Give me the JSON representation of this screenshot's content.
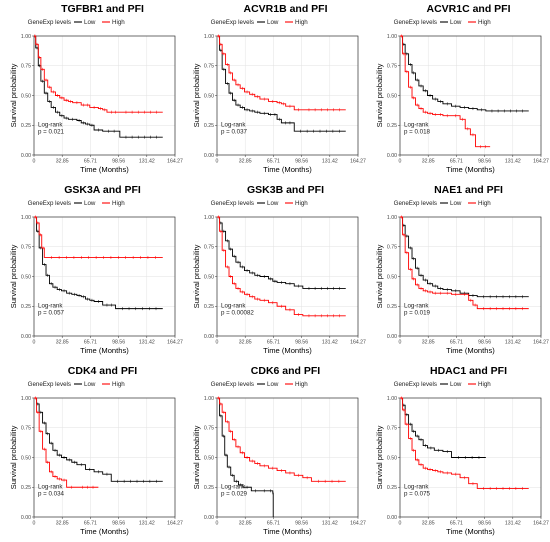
{
  "chart_data": [
    {
      "type": "line",
      "title": "TGFBR1 and PFI",
      "legend_title": "GeneExp levels",
      "xlabel": "Time (Months)",
      "ylabel": "Survival probability",
      "x_ticks": [
        "0",
        "32.85",
        "65.71",
        "98.56",
        "131.42",
        "164.27"
      ],
      "y_ticks": [
        "0.00",
        "0.25",
        "0.50",
        "0.75",
        "1.00"
      ],
      "xlim": [
        0,
        164.27
      ],
      "ylim": [
        0,
        1
      ],
      "legend_position": "top",
      "grid": true,
      "test_label": "Log-rank",
      "p_label": "p = 0.021",
      "series": [
        {
          "name": "Low",
          "color": "#000000",
          "x": [
            0,
            2,
            5,
            8,
            12,
            16,
            20,
            25,
            30,
            35,
            40,
            50,
            55,
            60,
            65,
            70,
            80,
            100,
            150
          ],
          "y": [
            1,
            0.9,
            0.75,
            0.62,
            0.52,
            0.45,
            0.4,
            0.36,
            0.33,
            0.31,
            0.3,
            0.29,
            0.27,
            0.26,
            0.25,
            0.21,
            0.2,
            0.15,
            0.15
          ]
        },
        {
          "name": "High",
          "color": "#ff0000",
          "x": [
            0,
            2,
            5,
            8,
            12,
            16,
            20,
            25,
            30,
            35,
            40,
            45,
            55,
            60,
            65,
            75,
            80,
            85,
            100,
            150
          ],
          "y": [
            1,
            0.93,
            0.82,
            0.72,
            0.63,
            0.57,
            0.53,
            0.5,
            0.48,
            0.46,
            0.45,
            0.44,
            0.42,
            0.42,
            0.4,
            0.39,
            0.38,
            0.36,
            0.36,
            0.36
          ]
        }
      ]
    },
    {
      "type": "line",
      "title": "ACVR1B and PFI",
      "legend_title": "GeneExp levels",
      "xlabel": "Time (Months)",
      "ylabel": "Survival probability",
      "x_ticks": [
        "0",
        "32.85",
        "65.71",
        "98.56",
        "131.42",
        "164.27"
      ],
      "y_ticks": [
        "0.00",
        "0.25",
        "0.50",
        "0.75",
        "1.00"
      ],
      "xlim": [
        0,
        164.27
      ],
      "ylim": [
        0,
        1
      ],
      "legend_position": "top",
      "grid": true,
      "test_label": "Log-rank",
      "p_label": "p = 0.037",
      "series": [
        {
          "name": "Low",
          "color": "#000000",
          "x": [
            0,
            3,
            6,
            10,
            14,
            18,
            22,
            27,
            32,
            38,
            44,
            50,
            60,
            65,
            70,
            75,
            90,
            150
          ],
          "y": [
            1,
            0.88,
            0.72,
            0.6,
            0.52,
            0.46,
            0.42,
            0.4,
            0.38,
            0.37,
            0.36,
            0.35,
            0.34,
            0.34,
            0.3,
            0.27,
            0.2,
            0.2
          ]
        },
        {
          "name": "High",
          "color": "#ff0000",
          "x": [
            0,
            3,
            6,
            10,
            14,
            18,
            22,
            27,
            32,
            38,
            44,
            50,
            60,
            70,
            75,
            80,
            90,
            100,
            150
          ],
          "y": [
            1,
            0.93,
            0.85,
            0.76,
            0.69,
            0.63,
            0.59,
            0.56,
            0.53,
            0.51,
            0.49,
            0.47,
            0.45,
            0.44,
            0.43,
            0.41,
            0.38,
            0.38,
            0.38
          ]
        }
      ]
    },
    {
      "type": "line",
      "title": "ACVR1C and PFI",
      "legend_title": "GeneExp levels",
      "xlabel": "Time (Months)",
      "ylabel": "Survival probability",
      "x_ticks": [
        "0",
        "32.85",
        "65.71",
        "98.56",
        "131.42",
        "164.27"
      ],
      "y_ticks": [
        "0.00",
        "0.25",
        "0.50",
        "0.75",
        "1.00"
      ],
      "xlim": [
        0,
        164.27
      ],
      "ylim": [
        0,
        1
      ],
      "legend_position": "top",
      "grid": true,
      "test_label": "Log-rank",
      "p_label": "p = 0.018",
      "series": [
        {
          "name": "Low",
          "color": "#000000",
          "x": [
            0,
            3,
            6,
            10,
            14,
            18,
            22,
            27,
            32,
            38,
            44,
            50,
            60,
            70,
            80,
            90,
            100,
            150
          ],
          "y": [
            1,
            0.93,
            0.85,
            0.76,
            0.69,
            0.63,
            0.58,
            0.54,
            0.5,
            0.47,
            0.45,
            0.43,
            0.41,
            0.4,
            0.39,
            0.38,
            0.37,
            0.37
          ]
        },
        {
          "name": "High",
          "color": "#ff0000",
          "x": [
            0,
            3,
            6,
            10,
            14,
            18,
            22,
            27,
            32,
            38,
            44,
            50,
            60,
            70,
            76,
            82,
            88,
            105
          ],
          "y": [
            1,
            0.85,
            0.7,
            0.57,
            0.48,
            0.42,
            0.39,
            0.36,
            0.35,
            0.34,
            0.34,
            0.33,
            0.33,
            0.3,
            0.22,
            0.17,
            0.07,
            0.07
          ]
        }
      ]
    },
    {
      "type": "line",
      "title": "GSK3A and PFI",
      "legend_title": "GeneExp levels",
      "xlabel": "Time (Months)",
      "ylabel": "Survival probability",
      "x_ticks": [
        "0",
        "32.85",
        "65.71",
        "98.56",
        "131.42",
        "164.27"
      ],
      "y_ticks": [
        "0.00",
        "0.25",
        "0.50",
        "0.75",
        "1.00"
      ],
      "xlim": [
        0,
        164.27
      ],
      "ylim": [
        0,
        1
      ],
      "legend_position": "top",
      "grid": true,
      "test_label": "Log-rank",
      "p_label": "p = 0.057",
      "series": [
        {
          "name": "Low",
          "color": "#000000",
          "x": [
            0,
            3,
            6,
            10,
            14,
            18,
            22,
            27,
            32,
            38,
            44,
            50,
            55,
            60,
            65,
            70,
            80,
            95,
            150
          ],
          "y": [
            1,
            0.88,
            0.74,
            0.6,
            0.51,
            0.44,
            0.41,
            0.39,
            0.38,
            0.36,
            0.35,
            0.34,
            0.33,
            0.31,
            0.3,
            0.29,
            0.26,
            0.23,
            0.23
          ]
        },
        {
          "name": "High",
          "color": "#ff0000",
          "x": [
            0,
            3,
            6,
            9,
            12,
            150
          ],
          "y": [
            1,
            0.95,
            0.85,
            0.74,
            0.66,
            0.66
          ]
        }
      ]
    },
    {
      "type": "line",
      "title": "GSK3B and PFI",
      "legend_title": "GeneExp levels",
      "xlabel": "Time (Months)",
      "ylabel": "Survival probability",
      "x_ticks": [
        "0",
        "32.85",
        "65.71",
        "98.56",
        "131.42",
        "164.27"
      ],
      "y_ticks": [
        "0.00",
        "0.25",
        "0.50",
        "0.75",
        "1.00"
      ],
      "xlim": [
        0,
        164.27
      ],
      "ylim": [
        0,
        1
      ],
      "legend_position": "top",
      "grid": true,
      "test_label": "Log-rank",
      "p_label": "p = 0.00082",
      "series": [
        {
          "name": "Low",
          "color": "#000000",
          "x": [
            0,
            3,
            6,
            10,
            14,
            18,
            22,
            27,
            32,
            38,
            44,
            50,
            60,
            65,
            70,
            80,
            90,
            100,
            150
          ],
          "y": [
            1,
            0.95,
            0.88,
            0.8,
            0.73,
            0.67,
            0.62,
            0.58,
            0.55,
            0.53,
            0.51,
            0.5,
            0.48,
            0.46,
            0.45,
            0.44,
            0.42,
            0.4,
            0.4
          ]
        },
        {
          "name": "High",
          "color": "#ff0000",
          "x": [
            0,
            3,
            6,
            10,
            14,
            18,
            22,
            27,
            32,
            38,
            44,
            50,
            60,
            70,
            80,
            90,
            100,
            150
          ],
          "y": [
            1,
            0.88,
            0.72,
            0.58,
            0.5,
            0.44,
            0.4,
            0.37,
            0.35,
            0.33,
            0.31,
            0.3,
            0.28,
            0.25,
            0.22,
            0.18,
            0.17,
            0.17
          ]
        }
      ]
    },
    {
      "type": "line",
      "title": "NAE1 and PFI",
      "legend_title": "GeneExp levels",
      "xlabel": "Time (Months)",
      "ylabel": "Survival probability",
      "x_ticks": [
        "0",
        "32.85",
        "65.71",
        "98.56",
        "131.42",
        "164.27"
      ],
      "y_ticks": [
        "0.00",
        "0.25",
        "0.50",
        "0.75",
        "1.00"
      ],
      "xlim": [
        0,
        164.27
      ],
      "ylim": [
        0,
        1
      ],
      "legend_position": "top",
      "grid": true,
      "test_label": "Log-rank",
      "p_label": "p = 0.019",
      "series": [
        {
          "name": "Low",
          "color": "#000000",
          "x": [
            0,
            3,
            6,
            10,
            14,
            18,
            22,
            27,
            32,
            38,
            44,
            50,
            60,
            70,
            80,
            90,
            150
          ],
          "y": [
            1,
            0.93,
            0.84,
            0.74,
            0.65,
            0.57,
            0.51,
            0.47,
            0.44,
            0.42,
            0.4,
            0.39,
            0.38,
            0.36,
            0.34,
            0.33,
            0.33
          ]
        },
        {
          "name": "High",
          "color": "#ff0000",
          "x": [
            0,
            3,
            6,
            10,
            14,
            18,
            22,
            27,
            32,
            38,
            44,
            50,
            60,
            70,
            80,
            85,
            90,
            150
          ],
          "y": [
            1,
            0.85,
            0.7,
            0.56,
            0.48,
            0.43,
            0.4,
            0.38,
            0.37,
            0.36,
            0.36,
            0.36,
            0.35,
            0.35,
            0.3,
            0.26,
            0.23,
            0.23
          ]
        }
      ]
    },
    {
      "type": "line",
      "title": "CDK4 and PFI",
      "legend_title": "GeneExp levels",
      "xlabel": "Time (Months)",
      "ylabel": "Survival probability",
      "x_ticks": [
        "0",
        "32.85",
        "65.71",
        "98.56",
        "131.42",
        "164.27"
      ],
      "y_ticks": [
        "0.00",
        "0.25",
        "0.50",
        "0.75",
        "1.00"
      ],
      "xlim": [
        0,
        164.27
      ],
      "ylim": [
        0,
        1
      ],
      "legend_position": "top",
      "grid": true,
      "test_label": "Log-rank",
      "p_label": "p = 0.034",
      "series": [
        {
          "name": "Low",
          "color": "#000000",
          "x": [
            0,
            3,
            6,
            10,
            14,
            18,
            22,
            27,
            32,
            38,
            44,
            50,
            60,
            70,
            80,
            90,
            150
          ],
          "y": [
            1,
            0.95,
            0.88,
            0.79,
            0.7,
            0.62,
            0.56,
            0.52,
            0.5,
            0.48,
            0.46,
            0.44,
            0.4,
            0.38,
            0.36,
            0.3,
            0.3
          ]
        },
        {
          "name": "High",
          "color": "#ff0000",
          "x": [
            0,
            3,
            6,
            10,
            14,
            18,
            22,
            27,
            32,
            38,
            50,
            75
          ],
          "y": [
            1,
            0.88,
            0.72,
            0.57,
            0.46,
            0.38,
            0.34,
            0.32,
            0.31,
            0.25,
            0.25,
            0.25
          ]
        }
      ]
    },
    {
      "type": "line",
      "title": "CDK6 and PFI",
      "legend_title": "GeneExp levels",
      "xlabel": "Time (Months)",
      "ylabel": "Survival probability",
      "x_ticks": [
        "0",
        "32.85",
        "65.71",
        "98.56",
        "131.42",
        "164.27"
      ],
      "y_ticks": [
        "0.00",
        "0.25",
        "0.50",
        "0.75",
        "1.00"
      ],
      "xlim": [
        0,
        164.27
      ],
      "ylim": [
        0,
        1
      ],
      "legend_position": "top",
      "grid": true,
      "test_label": "Log-rank",
      "p_label": "p = 0.029",
      "series": [
        {
          "name": "Low",
          "color": "#000000",
          "x": [
            0,
            3,
            6,
            9,
            12,
            16,
            20,
            25,
            30,
            40,
            50,
            60,
            65,
            65.5
          ],
          "y": [
            1,
            0.85,
            0.68,
            0.52,
            0.42,
            0.35,
            0.3,
            0.27,
            0.25,
            0.22,
            0.22,
            0.22,
            0.2,
            0
          ]
        },
        {
          "name": "High",
          "color": "#ff0000",
          "x": [
            0,
            3,
            6,
            10,
            14,
            18,
            22,
            27,
            32,
            38,
            44,
            50,
            60,
            70,
            80,
            90,
            100,
            110,
            150
          ],
          "y": [
            1,
            0.95,
            0.88,
            0.8,
            0.72,
            0.65,
            0.59,
            0.54,
            0.5,
            0.47,
            0.45,
            0.43,
            0.41,
            0.39,
            0.37,
            0.35,
            0.33,
            0.3,
            0.3
          ]
        }
      ]
    },
    {
      "type": "line",
      "title": "HDAC1 and PFI",
      "legend_title": "GeneExp levels",
      "xlabel": "Time (Months)",
      "ylabel": "Survival probability",
      "x_ticks": [
        "0",
        "32.85",
        "65.71",
        "98.56",
        "131.42",
        "164.27"
      ],
      "y_ticks": [
        "0.00",
        "0.25",
        "0.50",
        "0.75",
        "1.00"
      ],
      "xlim": [
        0,
        164.27
      ],
      "ylim": [
        0,
        1
      ],
      "legend_position": "top",
      "grid": true,
      "test_label": "Log-rank",
      "p_label": "p = 0.075",
      "series": [
        {
          "name": "Low",
          "color": "#000000",
          "x": [
            0,
            3,
            6,
            10,
            14,
            18,
            22,
            27,
            32,
            40,
            50,
            60,
            100
          ],
          "y": [
            1,
            0.94,
            0.86,
            0.78,
            0.72,
            0.68,
            0.65,
            0.6,
            0.58,
            0.56,
            0.55,
            0.5,
            0.5
          ]
        },
        {
          "name": "High",
          "color": "#ff0000",
          "x": [
            0,
            3,
            6,
            10,
            14,
            18,
            22,
            27,
            32,
            38,
            44,
            50,
            60,
            70,
            80,
            90,
            150
          ],
          "y": [
            1,
            0.9,
            0.78,
            0.66,
            0.56,
            0.48,
            0.44,
            0.41,
            0.4,
            0.39,
            0.38,
            0.37,
            0.36,
            0.33,
            0.28,
            0.24,
            0.24
          ]
        }
      ]
    }
  ]
}
